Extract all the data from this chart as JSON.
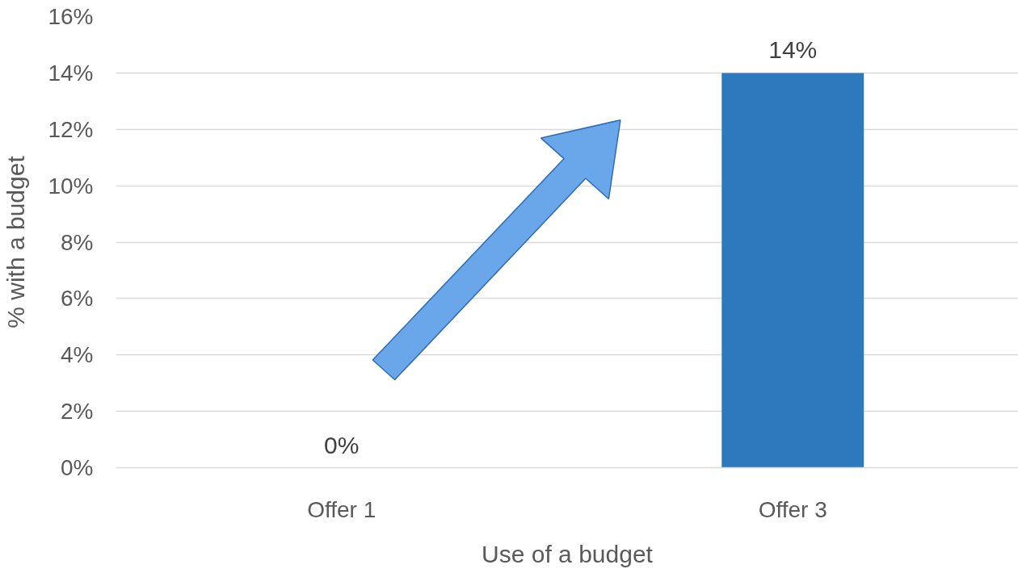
{
  "chart_data": {
    "type": "bar",
    "xlabel": "Use of a budget",
    "ylabel": "% with a budget",
    "categories": [
      "Offer 1",
      "Offer 3"
    ],
    "values": [
      0,
      14
    ],
    "color": "#2e78be",
    "value_labels": [
      "0%",
      "14%"
    ],
    "ylim": [
      0,
      16
    ],
    "yticks": [
      {
        "value": 0,
        "label": "0%"
      },
      {
        "value": 2,
        "label": "2%"
      },
      {
        "value": 4,
        "label": "4%"
      },
      {
        "value": 6,
        "label": "6%"
      },
      {
        "value": 8,
        "label": "8%"
      },
      {
        "value": 10,
        "label": "10%"
      },
      {
        "value": 12,
        "label": "12%"
      },
      {
        "value": 14,
        "label": "14%"
      },
      {
        "value": 16,
        "label": "16%"
      }
    ],
    "grid": "y"
  }
}
